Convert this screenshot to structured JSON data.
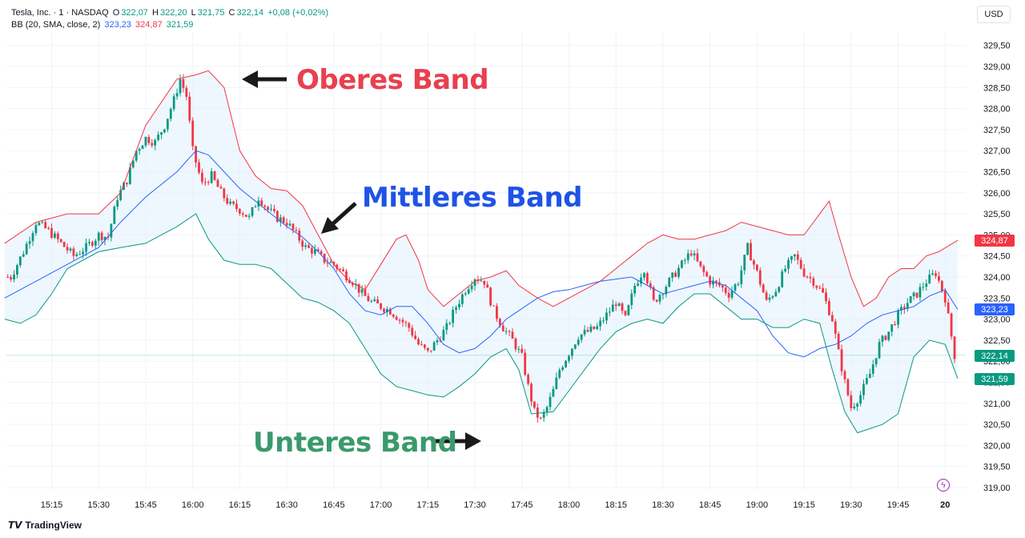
{
  "legend": {
    "symbol": "Tesla, Inc. · 1 · NASDAQ",
    "open_label": "O",
    "open": "322,07",
    "high_label": "H",
    "high": "322,20",
    "low_label": "L",
    "low": "321,75",
    "close_label": "C",
    "close": "322,14",
    "change": "+0,08 (+0,02%)",
    "indicator": "BB (20, SMA, close, 2)",
    "bb_middle": "323,23",
    "bb_upper": "324,87",
    "bb_lower": "321,59"
  },
  "currency": "USD",
  "price_tags": {
    "upper": "324,87",
    "middle": "323,23",
    "close": "322,14",
    "lower": "321,59"
  },
  "annotations": {
    "upper": "Oberes Band",
    "middle": "Mittleres Band",
    "lower": "Unteres Band"
  },
  "brand": "TradingView",
  "colors": {
    "up": "#089981",
    "down": "#f23645",
    "upper_band": "#f23645",
    "middle_band": "#2962ff",
    "lower_band": "#089981",
    "band_fill": "#e3f2fd",
    "annotation_upper": "#e8404f",
    "annotation_middle": "#1e53e5",
    "annotation_lower": "#3a9a6c"
  },
  "chart_data": {
    "type": "candlestick",
    "x_ticks": [
      "15:15",
      "15:30",
      "15:45",
      "16:00",
      "16:15",
      "16:30",
      "16:45",
      "17:00",
      "17:15",
      "17:30",
      "17:45",
      "18:00",
      "18:15",
      "18:30",
      "18:45",
      "19:00",
      "19:15",
      "19:30",
      "19:45",
      "20"
    ],
    "y_ticks": [
      "319,00",
      "319,50",
      "320,00",
      "320,50",
      "321,00",
      "321,50",
      "322,00",
      "322,50",
      "323,00",
      "323,50",
      "324,00",
      "324,50",
      "325,00",
      "325,50",
      "326,00",
      "326,50",
      "327,00",
      "327,50",
      "328,00",
      "328,50",
      "329,00",
      "329,50"
    ],
    "ylim": [
      318.75,
      330.2
    ],
    "x_range_minutes": [
      900,
      1204
    ],
    "close_series": [
      [
        902,
        324.0
      ],
      [
        906,
        324.6
      ],
      [
        910,
        325.3
      ],
      [
        914,
        325.1
      ],
      [
        918,
        324.8
      ],
      [
        922,
        324.5
      ],
      [
        926,
        324.7
      ],
      [
        930,
        325.0
      ],
      [
        933,
        324.95
      ],
      [
        936,
        325.9
      ],
      [
        939,
        326.3
      ],
      [
        942,
        327.0
      ],
      [
        945,
        327.3
      ],
      [
        948,
        327.2
      ],
      [
        951,
        327.6
      ],
      [
        954,
        328.2
      ],
      [
        956,
        328.7
      ],
      [
        958,
        328.3
      ],
      [
        960,
        327.0
      ],
      [
        963,
        326.2
      ],
      [
        966,
        326.4
      ],
      [
        969,
        326.0
      ],
      [
        972,
        325.7
      ],
      [
        975,
        325.6
      ],
      [
        978,
        325.4
      ],
      [
        981,
        325.9
      ],
      [
        984,
        325.6
      ],
      [
        987,
        325.4
      ],
      [
        990,
        325.3
      ],
      [
        993,
        325.0
      ],
      [
        996,
        324.7
      ],
      [
        999,
        324.6
      ],
      [
        1002,
        324.4
      ],
      [
        1005,
        324.3
      ],
      [
        1008,
        324.1
      ],
      [
        1011,
        323.9
      ],
      [
        1014,
        323.6
      ],
      [
        1017,
        323.4
      ],
      [
        1020,
        323.3
      ],
      [
        1023,
        323.2
      ],
      [
        1026,
        323.0
      ],
      [
        1029,
        322.8
      ],
      [
        1032,
        322.4
      ],
      [
        1035,
        322.2
      ],
      [
        1038,
        322.5
      ],
      [
        1041,
        322.8
      ],
      [
        1044,
        323.3
      ],
      [
        1047,
        323.7
      ],
      [
        1050,
        324.0
      ],
      [
        1053,
        323.9
      ],
      [
        1056,
        323.2
      ],
      [
        1059,
        322.8
      ],
      [
        1062,
        322.5
      ],
      [
        1065,
        322.1
      ],
      [
        1067,
        321.4
      ],
      [
        1069,
        320.8
      ],
      [
        1071,
        320.6
      ],
      [
        1073,
        320.9
      ],
      [
        1075,
        321.3
      ],
      [
        1077,
        321.8
      ],
      [
        1080,
        322.2
      ],
      [
        1083,
        322.6
      ],
      [
        1086,
        322.7
      ],
      [
        1089,
        322.8
      ],
      [
        1092,
        323.1
      ],
      [
        1095,
        323.4
      ],
      [
        1098,
        323.0
      ],
      [
        1101,
        323.8
      ],
      [
        1104,
        324.2
      ],
      [
        1107,
        323.4
      ],
      [
        1110,
        323.7
      ],
      [
        1113,
        324.0
      ],
      [
        1116,
        324.3
      ],
      [
        1119,
        324.6
      ],
      [
        1122,
        324.2
      ],
      [
        1125,
        323.9
      ],
      [
        1128,
        323.8
      ],
      [
        1131,
        323.6
      ],
      [
        1134,
        323.9
      ],
      [
        1137,
        324.7
      ],
      [
        1140,
        324.1
      ],
      [
        1143,
        323.4
      ],
      [
        1146,
        323.7
      ],
      [
        1149,
        324.2
      ],
      [
        1152,
        324.5
      ],
      [
        1155,
        324.1
      ],
      [
        1158,
        323.9
      ],
      [
        1161,
        323.6
      ],
      [
        1164,
        323.0
      ],
      [
        1166,
        322.2
      ],
      [
        1168,
        321.5
      ],
      [
        1170,
        320.9
      ],
      [
        1173,
        321.2
      ],
      [
        1176,
        321.7
      ],
      [
        1179,
        322.4
      ],
      [
        1182,
        322.7
      ],
      [
        1185,
        323.1
      ],
      [
        1188,
        323.4
      ],
      [
        1191,
        323.6
      ],
      [
        1194,
        323.9
      ],
      [
        1197,
        324.1
      ],
      [
        1200,
        323.5
      ],
      [
        1203,
        322.14
      ]
    ],
    "upper_band": [
      [
        900,
        324.8
      ],
      [
        910,
        325.3
      ],
      [
        920,
        325.5
      ],
      [
        930,
        325.5
      ],
      [
        937,
        326.0
      ],
      [
        945,
        327.6
      ],
      [
        955,
        328.7
      ],
      [
        961,
        328.8
      ],
      [
        965,
        328.9
      ],
      [
        970,
        328.5
      ],
      [
        975,
        327.0
      ],
      [
        980,
        326.4
      ],
      [
        985,
        326.1
      ],
      [
        990,
        326.05
      ],
      [
        995,
        325.7
      ],
      [
        1000,
        325.0
      ],
      [
        1005,
        324.3
      ],
      [
        1010,
        323.9
      ],
      [
        1015,
        323.7
      ],
      [
        1020,
        324.3
      ],
      [
        1025,
        324.9
      ],
      [
        1028,
        325.0
      ],
      [
        1032,
        324.4
      ],
      [
        1035,
        323.7
      ],
      [
        1040,
        323.3
      ],
      [
        1045,
        323.6
      ],
      [
        1050,
        323.9
      ],
      [
        1055,
        324.0
      ],
      [
        1060,
        324.15
      ],
      [
        1064,
        323.8
      ],
      [
        1070,
        323.5
      ],
      [
        1075,
        323.3
      ],
      [
        1080,
        323.5
      ],
      [
        1085,
        323.7
      ],
      [
        1090,
        323.9
      ],
      [
        1095,
        324.2
      ],
      [
        1100,
        324.5
      ],
      [
        1105,
        324.8
      ],
      [
        1110,
        325.0
      ],
      [
        1115,
        324.9
      ],
      [
        1120,
        324.9
      ],
      [
        1125,
        325.0
      ],
      [
        1130,
        325.1
      ],
      [
        1135,
        325.3
      ],
      [
        1140,
        325.2
      ],
      [
        1145,
        325.1
      ],
      [
        1150,
        325.0
      ],
      [
        1155,
        325.0
      ],
      [
        1160,
        325.5
      ],
      [
        1163,
        325.8
      ],
      [
        1166,
        325.0
      ],
      [
        1170,
        324.0
      ],
      [
        1174,
        323.3
      ],
      [
        1178,
        323.5
      ],
      [
        1182,
        324.0
      ],
      [
        1186,
        324.2
      ],
      [
        1190,
        324.2
      ],
      [
        1194,
        324.5
      ],
      [
        1198,
        324.6
      ],
      [
        1204,
        324.87
      ]
    ],
    "middle_band": [
      [
        900,
        323.5
      ],
      [
        910,
        323.9
      ],
      [
        920,
        324.3
      ],
      [
        930,
        324.7
      ],
      [
        937,
        325.3
      ],
      [
        945,
        325.9
      ],
      [
        955,
        326.5
      ],
      [
        961,
        327.0
      ],
      [
        965,
        326.9
      ],
      [
        970,
        326.5
      ],
      [
        975,
        326.1
      ],
      [
        980,
        325.8
      ],
      [
        985,
        325.5
      ],
      [
        990,
        325.2
      ],
      [
        995,
        324.95
      ],
      [
        1000,
        324.6
      ],
      [
        1005,
        324.2
      ],
      [
        1010,
        323.6
      ],
      [
        1015,
        323.2
      ],
      [
        1020,
        323.1
      ],
      [
        1025,
        323.3
      ],
      [
        1030,
        323.3
      ],
      [
        1035,
        322.9
      ],
      [
        1040,
        322.4
      ],
      [
        1045,
        322.2
      ],
      [
        1050,
        322.3
      ],
      [
        1055,
        322.6
      ],
      [
        1060,
        323.0
      ],
      [
        1065,
        323.25
      ],
      [
        1070,
        323.5
      ],
      [
        1075,
        323.65
      ],
      [
        1080,
        323.7
      ],
      [
        1085,
        323.8
      ],
      [
        1090,
        323.9
      ],
      [
        1095,
        323.95
      ],
      [
        1100,
        324.0
      ],
      [
        1105,
        323.8
      ],
      [
        1110,
        323.6
      ],
      [
        1115,
        323.7
      ],
      [
        1120,
        323.8
      ],
      [
        1125,
        323.9
      ],
      [
        1130,
        323.8
      ],
      [
        1135,
        323.5
      ],
      [
        1140,
        323.2
      ],
      [
        1145,
        322.6
      ],
      [
        1150,
        322.2
      ],
      [
        1155,
        322.1
      ],
      [
        1160,
        322.3
      ],
      [
        1165,
        322.4
      ],
      [
        1170,
        322.6
      ],
      [
        1175,
        322.9
      ],
      [
        1180,
        323.1
      ],
      [
        1185,
        323.2
      ],
      [
        1190,
        323.3
      ],
      [
        1195,
        323.55
      ],
      [
        1200,
        323.7
      ],
      [
        1204,
        323.23
      ]
    ],
    "lower_band": [
      [
        900,
        323.0
      ],
      [
        905,
        322.9
      ],
      [
        910,
        323.1
      ],
      [
        915,
        323.6
      ],
      [
        920,
        324.2
      ],
      [
        930,
        324.6
      ],
      [
        937,
        324.7
      ],
      [
        945,
        324.8
      ],
      [
        955,
        325.2
      ],
      [
        961,
        325.5
      ],
      [
        965,
        324.9
      ],
      [
        970,
        324.4
      ],
      [
        975,
        324.3
      ],
      [
        980,
        324.3
      ],
      [
        985,
        324.2
      ],
      [
        990,
        323.85
      ],
      [
        995,
        323.5
      ],
      [
        1000,
        323.4
      ],
      [
        1005,
        323.2
      ],
      [
        1010,
        322.9
      ],
      [
        1015,
        322.3
      ],
      [
        1020,
        321.7
      ],
      [
        1025,
        321.4
      ],
      [
        1030,
        321.3
      ],
      [
        1035,
        321.2
      ],
      [
        1040,
        321.15
      ],
      [
        1045,
        321.4
      ],
      [
        1050,
        321.7
      ],
      [
        1055,
        322.1
      ],
      [
        1060,
        322.3
      ],
      [
        1064,
        321.8
      ],
      [
        1068,
        320.75
      ],
      [
        1075,
        320.8
      ],
      [
        1080,
        321.3
      ],
      [
        1085,
        321.8
      ],
      [
        1090,
        322.3
      ],
      [
        1095,
        322.7
      ],
      [
        1100,
        322.9
      ],
      [
        1105,
        323.0
      ],
      [
        1110,
        322.9
      ],
      [
        1115,
        323.3
      ],
      [
        1120,
        323.6
      ],
      [
        1125,
        323.6
      ],
      [
        1130,
        323.3
      ],
      [
        1135,
        323.0
      ],
      [
        1140,
        323.0
      ],
      [
        1145,
        322.8
      ],
      [
        1150,
        322.8
      ],
      [
        1155,
        323.0
      ],
      [
        1160,
        322.9
      ],
      [
        1164,
        321.8
      ],
      [
        1168,
        320.8
      ],
      [
        1172,
        320.3
      ],
      [
        1176,
        320.4
      ],
      [
        1180,
        320.5
      ],
      [
        1185,
        320.75
      ],
      [
        1190,
        322.1
      ],
      [
        1195,
        322.5
      ],
      [
        1200,
        322.4
      ],
      [
        1204,
        321.59
      ]
    ]
  }
}
